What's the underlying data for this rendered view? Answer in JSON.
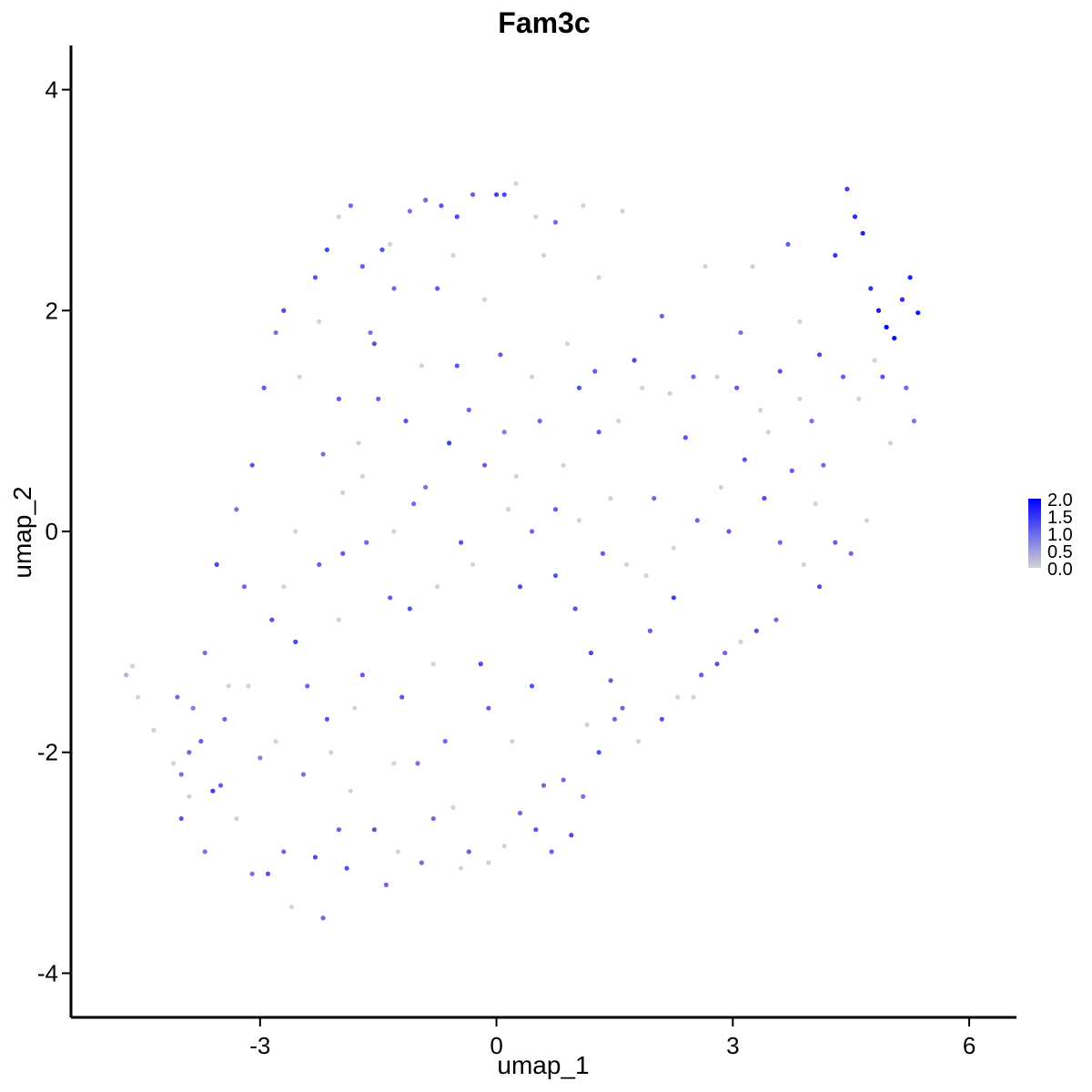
{
  "chart_data": {
    "type": "scatter",
    "title": "Fam3c",
    "xlabel": "umap_1",
    "ylabel": "umap_2",
    "xlim": [
      -5.4,
      6.6
    ],
    "ylim": [
      -4.4,
      4.4
    ],
    "xticks": [
      -3,
      0,
      3,
      6
    ],
    "xtick_labels": [
      "-3",
      "0",
      "3",
      "6"
    ],
    "yticks": [
      -4,
      -2,
      0,
      2,
      4
    ],
    "ytick_labels": [
      "-4",
      "-2",
      "0",
      "2",
      "4"
    ],
    "grid": false,
    "color_scale": {
      "low": "#d3d3d3",
      "high": "#0000ff",
      "min": 0,
      "max": 2.0,
      "breaks": [
        2.0,
        1.5,
        1.0,
        0.5,
        0.0
      ],
      "labels": [
        "2.0",
        "1.5",
        "1.0",
        "0.5",
        "0.0"
      ]
    },
    "legend_position": "right",
    "points": [
      [
        -4.7,
        -1.3,
        0.3
      ],
      [
        -4.62,
        -1.22,
        0.0
      ],
      [
        -4.55,
        -1.5,
        0.0
      ],
      [
        -4.35,
        -1.8,
        0.0
      ],
      [
        -4.1,
        -2.1,
        0.0
      ],
      [
        -4.0,
        -2.6,
        1.2
      ],
      [
        -3.9,
        -2.0,
        1.0
      ],
      [
        -3.85,
        -1.6,
        0.8
      ],
      [
        -3.7,
        -2.9,
        0.9
      ],
      [
        -3.6,
        -2.35,
        1.4
      ],
      [
        -3.5,
        -2.3,
        1.1
      ],
      [
        -3.4,
        -1.4,
        0.0
      ],
      [
        -3.3,
        -2.6,
        0.0
      ],
      [
        -3.2,
        -0.5,
        1.0
      ],
      [
        -3.1,
        -3.1,
        0.9
      ],
      [
        -3.0,
        -2.05,
        0.8
      ],
      [
        -2.9,
        -3.1,
        1.2
      ],
      [
        -2.8,
        -1.9,
        0.0
      ],
      [
        -2.7,
        -2.9,
        1.0
      ],
      [
        -2.6,
        -3.4,
        0.0
      ],
      [
        -2.55,
        -1.0,
        1.3
      ],
      [
        -2.45,
        -2.2,
        0.9
      ],
      [
        -2.3,
        -2.95,
        1.3
      ],
      [
        -2.2,
        -3.5,
        1.0
      ],
      [
        -2.1,
        -2.0,
        0.0
      ],
      [
        -2.0,
        -2.7,
        1.1
      ],
      [
        -1.9,
        -3.05,
        1.2
      ],
      [
        -1.8,
        -1.6,
        0.0
      ],
      [
        -1.4,
        -3.2,
        1.0
      ],
      [
        -1.3,
        -2.1,
        0.0
      ],
      [
        -3.55,
        -0.3,
        1.3
      ],
      [
        -3.3,
        0.2,
        0.9
      ],
      [
        -3.1,
        0.6,
        1.2
      ],
      [
        -2.95,
        1.3,
        1.1
      ],
      [
        -2.8,
        1.8,
        0.9
      ],
      [
        -2.7,
        2.0,
        1.3
      ],
      [
        -2.5,
        1.4,
        0.0
      ],
      [
        -2.3,
        2.3,
        1.2
      ],
      [
        -2.15,
        2.55,
        1.3
      ],
      [
        -2.0,
        2.85,
        0.0
      ],
      [
        -1.85,
        2.95,
        1.0
      ],
      [
        -1.7,
        2.4,
        1.1
      ],
      [
        -1.6,
        1.8,
        0.9
      ],
      [
        -1.45,
        2.55,
        1.2
      ],
      [
        -1.3,
        2.2,
        1.0
      ],
      [
        -1.1,
        2.9,
        0.9
      ],
      [
        -0.9,
        3.0,
        1.0
      ],
      [
        -0.7,
        2.95,
        1.2
      ],
      [
        -0.5,
        2.85,
        1.3
      ],
      [
        -0.3,
        3.05,
        1.1
      ],
      [
        0.0,
        3.05,
        1.4
      ],
      [
        0.1,
        3.05,
        1.3
      ],
      [
        0.25,
        3.15,
        0.0
      ],
      [
        0.5,
        2.85,
        0.0
      ],
      [
        0.75,
        2.8,
        1.0
      ],
      [
        1.1,
        2.95,
        0.0
      ],
      [
        1.6,
        2.9,
        0.0
      ],
      [
        1.3,
        2.3,
        0.0
      ],
      [
        0.6,
        2.5,
        0.0
      ],
      [
        -2.2,
        0.7,
        0.9
      ],
      [
        -1.95,
        -0.2,
        1.1
      ],
      [
        -1.7,
        0.5,
        0.0
      ],
      [
        -1.5,
        1.2,
        1.0
      ],
      [
        -1.3,
        0.0,
        0.0
      ],
      [
        -1.1,
        -0.7,
        1.2
      ],
      [
        -0.9,
        0.4,
        0.9
      ],
      [
        -0.8,
        -1.2,
        0.0
      ],
      [
        -0.6,
        0.8,
        1.4
      ],
      [
        -0.5,
        1.5,
        1.2
      ],
      [
        -0.3,
        -0.3,
        0.0
      ],
      [
        -0.1,
        -1.6,
        1.1
      ],
      [
        0.1,
        0.9,
        0.8
      ],
      [
        0.3,
        -0.5,
        1.3
      ],
      [
        0.45,
        1.4,
        0.0
      ],
      [
        0.6,
        -2.3,
        1.0
      ],
      [
        0.75,
        0.2,
        1.1
      ],
      [
        0.9,
        1.7,
        0.0
      ],
      [
        1.0,
        -0.7,
        1.2
      ],
      [
        1.2,
        -1.1,
        1.3
      ],
      [
        1.3,
        0.9,
        1.1
      ],
      [
        1.45,
        0.3,
        0.0
      ],
      [
        1.6,
        -1.6,
        1.0
      ],
      [
        1.75,
        1.55,
        1.3
      ],
      [
        1.9,
        -0.4,
        0.0
      ],
      [
        2.0,
        0.3,
        1.0
      ],
      [
        2.1,
        1.95,
        1.0
      ],
      [
        2.25,
        -0.6,
        1.4
      ],
      [
        2.4,
        0.85,
        1.2
      ],
      [
        2.5,
        -1.5,
        0.0
      ],
      [
        2.65,
        2.4,
        0.0
      ],
      [
        2.8,
        -1.2,
        1.2
      ],
      [
        2.95,
        0.0,
        1.1
      ],
      [
        3.1,
        1.8,
        0.9
      ],
      [
        3.25,
        2.4,
        0.0
      ],
      [
        3.4,
        0.3,
        1.3
      ],
      [
        3.55,
        -0.8,
        1.0
      ],
      [
        3.7,
        2.6,
        1.1
      ],
      [
        3.85,
        1.9,
        0.0
      ],
      [
        4.0,
        1.0,
        0.9
      ],
      [
        4.15,
        0.6,
        1.0
      ],
      [
        4.3,
        2.5,
        1.5
      ],
      [
        4.45,
        3.1,
        1.4
      ],
      [
        4.55,
        2.85,
        1.6
      ],
      [
        4.65,
        2.7,
        1.7
      ],
      [
        4.75,
        2.2,
        1.5
      ],
      [
        4.85,
        2.0,
        1.8
      ],
      [
        4.95,
        1.85,
        2.0
      ],
      [
        5.05,
        1.75,
        1.9
      ],
      [
        5.15,
        2.1,
        1.6
      ],
      [
        5.25,
        2.3,
        1.7
      ],
      [
        5.35,
        1.98,
        1.8
      ],
      [
        5.3,
        1.0,
        0.9
      ],
      [
        5.0,
        0.8,
        0.0
      ],
      [
        4.9,
        1.4,
        1.2
      ],
      [
        4.7,
        0.1,
        0.0
      ],
      [
        4.5,
        -0.2,
        1.0
      ],
      [
        4.3,
        -0.1,
        1.1
      ],
      [
        4.1,
        -0.5,
        1.3
      ],
      [
        3.9,
        -0.3,
        0.0
      ],
      [
        3.6,
        -0.1,
        1.0
      ],
      [
        3.3,
        -0.9,
        1.2
      ],
      [
        3.1,
        -1.0,
        0.0
      ],
      [
        2.9,
        -1.1,
        1.0
      ],
      [
        2.6,
        -1.3,
        1.1
      ],
      [
        2.3,
        -1.5,
        0.0
      ],
      [
        2.1,
        -1.7,
        1.2
      ],
      [
        1.8,
        -1.9,
        0.0
      ],
      [
        1.5,
        -1.7,
        1.0
      ],
      [
        1.3,
        -2.0,
        1.2
      ],
      [
        1.1,
        -2.4,
        0.9
      ],
      [
        0.95,
        -2.75,
        1.3
      ],
      [
        0.7,
        -2.9,
        1.1
      ],
      [
        0.5,
        -2.7,
        1.2
      ],
      [
        0.3,
        -2.55,
        1.0
      ],
      [
        0.1,
        -2.85,
        0.0
      ],
      [
        -0.1,
        -3.0,
        0.0
      ],
      [
        -0.35,
        -2.9,
        1.1
      ],
      [
        -0.55,
        -2.5,
        0.0
      ],
      [
        -0.8,
        -2.6,
        1.0
      ],
      [
        -1.0,
        -2.1,
        0.9
      ],
      [
        -1.2,
        -1.5,
        1.2
      ],
      [
        -0.65,
        -1.9,
        1.0
      ],
      [
        -0.2,
        -1.2,
        1.3
      ],
      [
        0.2,
        -1.9,
        0.0
      ],
      [
        0.45,
        -1.4,
        1.2
      ],
      [
        -2.7,
        -0.5,
        0.0
      ],
      [
        -2.4,
        -1.4,
        1.0
      ],
      [
        -2.0,
        -0.8,
        0.0
      ],
      [
        -1.7,
        -1.3,
        1.1
      ],
      [
        -3.7,
        -1.1,
        0.9
      ],
      [
        -4.05,
        -1.5,
        1.0
      ],
      [
        -3.9,
        -2.4,
        0.0
      ],
      [
        -2.25,
        1.9,
        0.0
      ],
      [
        -2.0,
        1.2,
        1.1
      ],
      [
        -1.75,
        0.8,
        0.0
      ],
      [
        -1.55,
        1.7,
        1.2
      ],
      [
        -1.35,
        2.6,
        0.0
      ],
      [
        -1.15,
        1.0,
        1.2
      ],
      [
        -0.95,
        1.5,
        0.0
      ],
      [
        -0.75,
        2.2,
        1.1
      ],
      [
        -0.55,
        2.5,
        0.0
      ],
      [
        -0.35,
        1.1,
        1.0
      ],
      [
        -0.15,
        2.1,
        0.0
      ],
      [
        0.05,
        1.6,
        1.1
      ],
      [
        0.25,
        0.5,
        0.0
      ],
      [
        0.55,
        1.0,
        1.0
      ],
      [
        0.85,
        0.6,
        0.0
      ],
      [
        1.05,
        1.3,
        1.2
      ],
      [
        1.25,
        1.45,
        1.1
      ],
      [
        1.55,
        1.0,
        0.0
      ],
      [
        1.85,
        1.3,
        0.0
      ],
      [
        2.2,
        1.25,
        0.0
      ],
      [
        2.5,
        1.4,
        1.0
      ],
      [
        2.8,
        1.4,
        0.0
      ],
      [
        3.05,
        1.3,
        1.1
      ],
      [
        3.35,
        1.1,
        0.0
      ],
      [
        3.6,
        1.45,
        1.2
      ],
      [
        3.85,
        1.2,
        0.0
      ],
      [
        4.1,
        1.6,
        1.3
      ],
      [
        4.4,
        1.4,
        1.1
      ],
      [
        4.6,
        1.2,
        0.0
      ],
      [
        4.8,
        1.55,
        0.0
      ],
      [
        5.2,
        1.3,
        1.0
      ],
      [
        4.05,
        0.25,
        0.0
      ],
      [
        3.75,
        0.55,
        1.1
      ],
      [
        3.45,
        0.9,
        0.0
      ],
      [
        3.15,
        0.65,
        1.2
      ],
      [
        2.85,
        0.4,
        0.0
      ],
      [
        2.55,
        0.1,
        1.0
      ],
      [
        2.25,
        -0.15,
        0.0
      ],
      [
        1.95,
        -0.9,
        1.1
      ],
      [
        1.65,
        -0.3,
        0.0
      ],
      [
        1.35,
        -0.2,
        1.1
      ],
      [
        1.05,
        0.1,
        0.0
      ],
      [
        0.75,
        -0.4,
        1.2
      ],
      [
        0.45,
        0.0,
        1.0
      ],
      [
        0.15,
        0.2,
        0.0
      ],
      [
        -0.15,
        0.6,
        1.1
      ],
      [
        -0.45,
        -0.1,
        1.2
      ],
      [
        -0.75,
        -0.5,
        0.0
      ],
      [
        -1.05,
        0.25,
        1.0
      ],
      [
        -1.35,
        -0.6,
        1.1
      ],
      [
        -1.65,
        -0.1,
        1.0
      ],
      [
        -1.95,
        0.35,
        0.0
      ],
      [
        -2.25,
        -0.3,
        1.1
      ],
      [
        -2.55,
        0.0,
        0.0
      ],
      [
        -2.85,
        -0.8,
        1.2
      ],
      [
        -3.15,
        -1.4,
        0.0
      ],
      [
        -3.45,
        -1.7,
        1.0
      ],
      [
        -3.75,
        -1.9,
        1.1
      ],
      [
        -4.0,
        -2.2,
        0.9
      ],
      [
        -2.15,
        -1.7,
        1.2
      ],
      [
        -1.85,
        -2.35,
        0.0
      ],
      [
        -1.55,
        -2.7,
        1.2
      ],
      [
        -1.25,
        -2.9,
        0.0
      ],
      [
        -0.95,
        -3.0,
        1.0
      ],
      [
        -0.45,
        -3.05,
        0.0
      ],
      [
        0.85,
        -2.25,
        1.0
      ],
      [
        1.15,
        -1.75,
        0.0
      ],
      [
        1.45,
        -1.35,
        1.1
      ]
    ]
  }
}
